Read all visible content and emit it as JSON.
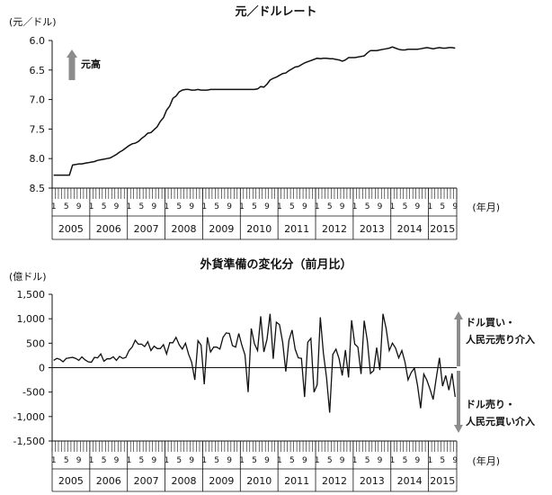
{
  "chart_data": [
    {
      "type": "line",
      "title": "元／ドルレート",
      "ylabel": "(元／ドル)",
      "xlabel": "(年月)",
      "y_inverted": true,
      "ylim": [
        6.0,
        8.5
      ],
      "yticks": [
        "6.0",
        "6.5",
        "7.0",
        "7.5",
        "8.0",
        "8.5"
      ],
      "month_ticks": [
        "1",
        "5",
        "9"
      ],
      "years": [
        "2005",
        "2006",
        "2007",
        "2008",
        "2009",
        "2010",
        "2011",
        "2012",
        "2013",
        "2014",
        "2015"
      ],
      "annotation": "元高",
      "arrow_color": "#8c8c8c",
      "line_color": "#111111",
      "x_start": "2005-01",
      "values": [
        8.28,
        8.28,
        8.28,
        8.28,
        8.28,
        8.28,
        8.11,
        8.1,
        8.09,
        8.09,
        8.08,
        8.07,
        8.06,
        8.05,
        8.03,
        8.02,
        8.01,
        8.0,
        7.99,
        7.96,
        7.93,
        7.89,
        7.86,
        7.82,
        7.78,
        7.75,
        7.74,
        7.71,
        7.66,
        7.62,
        7.57,
        7.56,
        7.51,
        7.46,
        7.37,
        7.31,
        7.18,
        7.11,
        6.98,
        6.94,
        6.87,
        6.84,
        6.83,
        6.83,
        6.84,
        6.84,
        6.83,
        6.84,
        6.84,
        6.84,
        6.83,
        6.83,
        6.83,
        6.83,
        6.83,
        6.83,
        6.83,
        6.83,
        6.83,
        6.83,
        6.83,
        6.83,
        6.83,
        6.83,
        6.83,
        6.82,
        6.78,
        6.79,
        6.74,
        6.67,
        6.64,
        6.62,
        6.59,
        6.56,
        6.55,
        6.51,
        6.48,
        6.45,
        6.44,
        6.41,
        6.38,
        6.36,
        6.34,
        6.32,
        6.3,
        6.31,
        6.3,
        6.3,
        6.31,
        6.31,
        6.32,
        6.33,
        6.35,
        6.33,
        6.29,
        6.29,
        6.29,
        6.28,
        6.27,
        6.26,
        6.21,
        6.17,
        6.17,
        6.17,
        6.16,
        6.15,
        6.14,
        6.13,
        6.11,
        6.13,
        6.15,
        6.16,
        6.16,
        6.15,
        6.15,
        6.15,
        6.15,
        6.14,
        6.13,
        6.12,
        6.13,
        6.14,
        6.13,
        6.12,
        6.13,
        6.13,
        6.12,
        6.12,
        6.13
      ]
    },
    {
      "type": "line",
      "title": "外貨準備の変化分（前月比）",
      "ylabel": "(億ドル)",
      "xlabel": "(年月)",
      "ylim": [
        -1500,
        1500
      ],
      "yticks": [
        "1,500",
        "1,000",
        "500",
        "0",
        "-500",
        "-1,000",
        "-1,500"
      ],
      "month_ticks": [
        "1",
        "5",
        "9"
      ],
      "years": [
        "2005",
        "2006",
        "2007",
        "2008",
        "2009",
        "2010",
        "2011",
        "2012",
        "2013",
        "2014",
        "2015"
      ],
      "annotation_up": [
        "ドル買い・",
        "人民元売り介入"
      ],
      "annotation_down": [
        "ドル売り・",
        "人民元買い介入"
      ],
      "arrow_color": "#8c8c8c",
      "line_color": "#111111",
      "x_start": "2005-01",
      "values": [
        150,
        190,
        170,
        120,
        190,
        200,
        210,
        190,
        150,
        220,
        160,
        120,
        110,
        210,
        200,
        280,
        130,
        180,
        180,
        220,
        150,
        230,
        190,
        210,
        350,
        420,
        560,
        480,
        480,
        430,
        530,
        350,
        440,
        390,
        390,
        470,
        280,
        510,
        510,
        620,
        470,
        380,
        500,
        280,
        110,
        -250,
        550,
        460,
        -340,
        620,
        320,
        420,
        420,
        380,
        620,
        710,
        700,
        450,
        420,
        700,
        460,
        260,
        -500,
        800,
        490,
        350,
        1050,
        320,
        580,
        1100,
        180,
        930,
        880,
        520,
        -80,
        560,
        770,
        380,
        200,
        190,
        -600,
        520,
        600,
        -500,
        -350,
        1030,
        300,
        -200,
        -920,
        270,
        380,
        180,
        -160,
        360,
        -200,
        970,
        480,
        420,
        -130,
        960,
        550,
        -120,
        -60,
        410,
        -50,
        1100,
        800,
        350,
        500,
        400,
        200,
        350,
        120,
        -250,
        -100,
        -10,
        -360,
        -830,
        -130,
        -260,
        -440,
        -650,
        -210,
        200,
        -380,
        -160,
        -460,
        -120,
        -600
      ]
    }
  ]
}
